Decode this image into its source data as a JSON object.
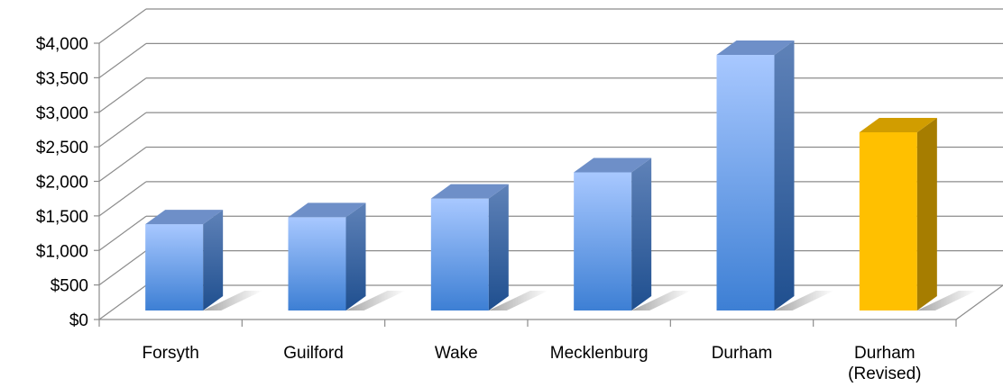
{
  "chart_data": {
    "type": "bar",
    "title": "",
    "xlabel": "",
    "ylabel": "",
    "categories": [
      "Forsyth",
      "Guilford",
      "Wake",
      "Mecklenburg",
      "Durham",
      "Durham (Revised)"
    ],
    "category_lines": [
      [
        "Forsyth"
      ],
      [
        "Guilford"
      ],
      [
        "Wake"
      ],
      [
        "Mecklenburg"
      ],
      [
        "Durham"
      ],
      [
        "Durham",
        "(Revised)"
      ]
    ],
    "values": [
      1250,
      1350,
      1620,
      2000,
      3700,
      2580
    ],
    "ylim": [
      0,
      4000
    ],
    "yticks": [
      0,
      500,
      1000,
      1500,
      2000,
      2500,
      3000,
      3500,
      4000
    ],
    "ytick_labels": [
      "$0",
      "$500",
      "$1,000",
      "$1,500",
      "$2,000",
      "$2,500",
      "$3,000",
      "$3,500",
      "$4,000"
    ],
    "grid": true,
    "legend": "none",
    "three_d": true,
    "bar_colors": [
      "#4a86d4",
      "#4a86d4",
      "#4a86d4",
      "#4a86d4",
      "#4a86d4",
      "#ffc000"
    ],
    "highlight_color": "#ffc000",
    "base_color": "#4a86d4"
  }
}
